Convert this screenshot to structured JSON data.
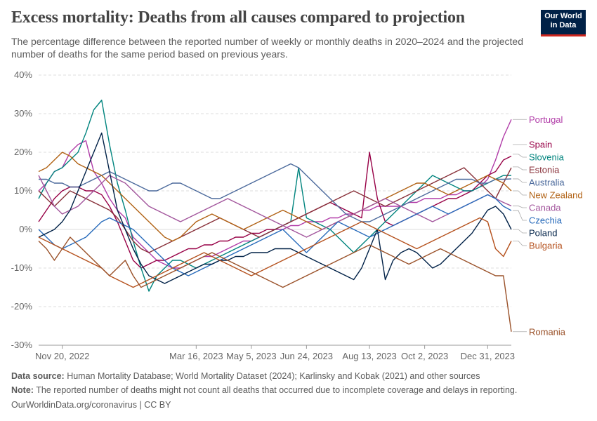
{
  "header": {
    "title": "Excess mortality: Deaths from all causes compared to projection",
    "subtitle": "The percentage difference between the reported number of weekly or monthly deaths in 2020–2024 and the projected number of deaths for the same period based on previous years.",
    "logo_line1": "Our World",
    "logo_line2": "in Data"
  },
  "footer": {
    "source_label": "Data source:",
    "source_text": " Human Mortality Database; World Mortality Dataset (2024); Karlinsky and Kobak (2021) and other sources",
    "note_label": "Note:",
    "note_text": " The reported number of deaths might not count all deaths that occurred due to incomplete coverage and delays in reporting.",
    "credit": "OurWorldinData.org/coronavirus | CC BY"
  },
  "chart_data": {
    "type": "line",
    "title": "Excess mortality: Deaths from all causes compared to projection",
    "ylabel": "",
    "xlabel": "",
    "ylim": [
      -30,
      40
    ],
    "y_ticks": [
      -30,
      -20,
      -10,
      0,
      10,
      20,
      30,
      40
    ],
    "y_tick_labels": [
      "-30%",
      "-20%",
      "-10%",
      "0%",
      "10%",
      "20%",
      "30%",
      "40%"
    ],
    "x_domain": [
      0,
      60
    ],
    "x_ticks": [
      {
        "x": 3,
        "label": "Nov 20, 2022"
      },
      {
        "x": 20,
        "label": "Mar 16, 2023"
      },
      {
        "x": 27,
        "label": "May 5, 2023"
      },
      {
        "x": 34,
        "label": "Jun 24, 2023"
      },
      {
        "x": 42,
        "label": "Aug 13, 2023"
      },
      {
        "x": 49,
        "label": "Oct 2, 2023"
      },
      {
        "x": 57,
        "label": "Dec 31, 2023"
      }
    ],
    "grid": true,
    "series": [
      {
        "name": "Portugal",
        "color": "#b13ca8",
        "label_value": 28.5,
        "values": [
          10,
          12,
          15,
          16,
          20,
          22,
          23,
          15,
          12,
          8,
          5,
          3,
          -2,
          -4,
          -6,
          -8,
          -9,
          -10,
          -10,
          -9,
          -8,
          -7,
          -7,
          -6,
          -5,
          -4,
          -3,
          -3,
          -2,
          -1,
          0,
          0,
          1,
          1,
          2,
          2,
          2,
          3,
          3,
          4,
          4,
          5,
          5,
          6,
          6,
          6,
          6,
          7,
          7,
          8,
          8,
          8,
          9,
          9,
          10,
          10,
          11,
          13,
          18,
          24,
          28.5
        ]
      },
      {
        "name": "Spain",
        "color": "#970046",
        "label_value": 22,
        "values": [
          2,
          5,
          8,
          10,
          11,
          11,
          10,
          10,
          9,
          6,
          2,
          -3,
          -8,
          -10,
          -9,
          -8,
          -8,
          -7,
          -6,
          -5,
          -5,
          -4,
          -4,
          -3,
          -3,
          -2,
          -2,
          -1,
          -1,
          0,
          0,
          1,
          2,
          3,
          4,
          5,
          6,
          7,
          6,
          5,
          4,
          3,
          20,
          8,
          2,
          1,
          2,
          3,
          4,
          5,
          6,
          7,
          8,
          8,
          9,
          10,
          12,
          14,
          15,
          18,
          19
        ]
      },
      {
        "name": "Slovenia",
        "color": "#00847e",
        "label_value": 19.5,
        "values": [
          8,
          12,
          15,
          16,
          18,
          20,
          25,
          31,
          33.5,
          22,
          12,
          5,
          -3,
          -10,
          -16,
          -12,
          -10,
          -8,
          -8,
          -9,
          -10,
          -9,
          -8,
          -7,
          -6,
          -5,
          -4,
          -3,
          -2,
          -1,
          0,
          1,
          2,
          16,
          3,
          2,
          1,
          0,
          -2,
          -4,
          -6,
          -4,
          -2,
          0,
          2,
          4,
          6,
          8,
          10,
          12,
          14,
          13,
          12,
          11,
          10,
          10,
          11,
          12,
          13,
          14,
          14
        ]
      },
      {
        "name": "Estonia",
        "color": "#883039",
        "label_value": 16.2,
        "values": [
          10,
          8,
          6,
          8,
          10,
          9,
          8,
          7,
          6,
          5,
          3,
          0,
          -3,
          -5,
          -6,
          -5,
          -4,
          -3,
          -2,
          -1,
          0,
          1,
          2,
          3,
          2,
          1,
          0,
          -1,
          -2,
          -1,
          0,
          1,
          2,
          3,
          4,
          5,
          6,
          7,
          8,
          9,
          10,
          9,
          8,
          7,
          6,
          7,
          8,
          9,
          10,
          11,
          12,
          13,
          14,
          15,
          16,
          14,
          12,
          10,
          8,
          12,
          16
        ]
      },
      {
        "name": "Australia",
        "color": "#4c6a9c",
        "label_value": 13.1,
        "values": [
          13,
          13,
          12,
          12,
          11,
          11,
          12,
          13,
          14,
          15,
          14,
          13,
          12,
          11,
          10,
          10,
          11,
          12,
          12,
          11,
          10,
          9,
          8,
          8,
          9,
          10,
          11,
          12,
          13,
          14,
          15,
          16,
          17,
          16,
          14,
          12,
          10,
          8,
          6,
          4,
          3,
          2,
          2,
          3,
          4,
          5,
          6,
          7,
          8,
          9,
          10,
          11,
          12,
          13,
          13,
          13,
          12,
          12,
          13,
          13,
          13.1
        ]
      },
      {
        "name": "New Zealand",
        "color": "#b16214",
        "label_value": 10,
        "values": [
          15,
          16,
          18,
          20,
          19,
          17,
          16,
          15,
          14,
          12,
          10,
          8,
          6,
          4,
          2,
          0,
          -2,
          -3,
          -2,
          0,
          2,
          3,
          4,
          3,
          2,
          1,
          0,
          1,
          2,
          3,
          4,
          5,
          4,
          3,
          2,
          1,
          0,
          1,
          2,
          3,
          4,
          5,
          6,
          7,
          8,
          9,
          10,
          11,
          12,
          12,
          11,
          10,
          9,
          10,
          11,
          12,
          13,
          14,
          13,
          12,
          10
        ]
      },
      {
        "name": "Canada",
        "color": "#a2559c",
        "label_value": 6.1,
        "values": [
          14,
          10,
          6,
          4,
          5,
          6,
          8,
          10,
          12,
          14,
          13,
          12,
          10,
          8,
          6,
          5,
          4,
          3,
          2,
          3,
          4,
          5,
          6,
          7,
          8,
          7,
          6,
          5,
          4,
          3,
          2,
          1,
          0,
          -1,
          -2,
          -1,
          0,
          1,
          2,
          3,
          4,
          5,
          6,
          7,
          8,
          7,
          6,
          5,
          4,
          3,
          2,
          3,
          4,
          5,
          6,
          7,
          8,
          9,
          8,
          7,
          6.1
        ]
      },
      {
        "name": "Czechia",
        "color": "#286bbb",
        "label_value": 4.9,
        "values": [
          0,
          -2,
          -4,
          -5,
          -4,
          -3,
          -2,
          0,
          2,
          3,
          2,
          1,
          0,
          -2,
          -4,
          -6,
          -8,
          -10,
          -11,
          -12,
          -11,
          -10,
          -9,
          -8,
          -7,
          -6,
          -5,
          -4,
          -3,
          -2,
          -1,
          0,
          -2,
          -4,
          -6,
          -4,
          -2,
          0,
          2,
          1,
          0,
          -1,
          -2,
          -1,
          0,
          1,
          2,
          3,
          4,
          5,
          6,
          5,
          4,
          5,
          6,
          7,
          8,
          9,
          8,
          6,
          4.9
        ]
      },
      {
        "name": "Poland",
        "color": "#002147",
        "label_value": 0,
        "values": [
          -2,
          -1,
          0,
          2,
          5,
          10,
          15,
          20,
          25,
          15,
          5,
          0,
          -5,
          -9,
          -12,
          -13,
          -14,
          -13,
          -12,
          -11,
          -10,
          -9,
          -9,
          -8,
          -8,
          -7,
          -7,
          -6,
          -6,
          -6,
          -5,
          -5,
          -5,
          -6,
          -7,
          -8,
          -9,
          -10,
          -11,
          -12,
          -13,
          -10,
          -5,
          0,
          -13,
          -8,
          -6,
          -5,
          -6,
          -8,
          -10,
          -9,
          -7,
          -5,
          -3,
          -1,
          2,
          5,
          6,
          4,
          0
        ]
      },
      {
        "name": "Bulgaria",
        "color": "#b5511d",
        "label_value": -3,
        "values": [
          -2,
          -3,
          -4,
          -5,
          -6,
          -7,
          -8,
          -9,
          -10,
          -12,
          -13,
          -14,
          -15,
          -14,
          -13,
          -12,
          -11,
          -10,
          -9,
          -8,
          -7,
          -6,
          -7,
          -8,
          -9,
          -10,
          -11,
          -12,
          -11,
          -10,
          -9,
          -8,
          -7,
          -6,
          -5,
          -4,
          -3,
          -2,
          -1,
          0,
          1,
          2,
          1,
          0,
          -1,
          -2,
          -3,
          -4,
          -5,
          -4,
          -3,
          -2,
          -1,
          0,
          1,
          2,
          3,
          2,
          -5,
          -7,
          -3
        ]
      },
      {
        "name": "Romania",
        "color": "#9a5129",
        "label_value": -26.5,
        "values": [
          -3,
          -5,
          -8,
          -5,
          -2,
          -4,
          -6,
          -8,
          -10,
          -12,
          -10,
          -8,
          -12,
          -15,
          -14,
          -13,
          -12,
          -11,
          -10,
          -9,
          -8,
          -7,
          -6,
          -7,
          -8,
          -9,
          -10,
          -11,
          -12,
          -13,
          -14,
          -15,
          -14,
          -13,
          -12,
          -11,
          -10,
          -9,
          -8,
          -7,
          -6,
          -5,
          -4,
          -5,
          -6,
          -7,
          -8,
          -9,
          -8,
          -7,
          -6,
          -5,
          -6,
          -7,
          -8,
          -9,
          -10,
          -11,
          -12,
          -12,
          -26.5
        ]
      }
    ]
  }
}
